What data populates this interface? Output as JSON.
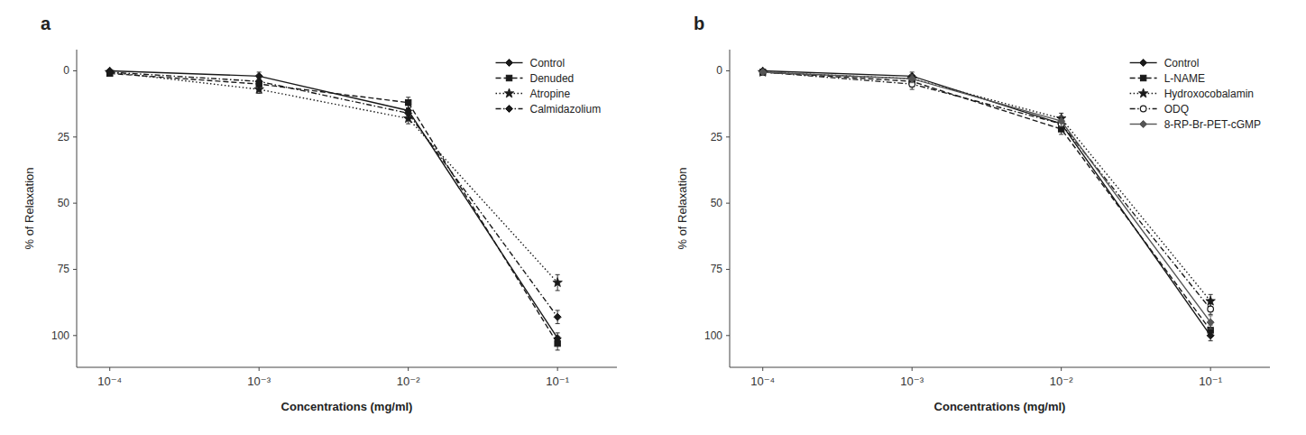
{
  "chart_data": [
    {
      "type": "line",
      "title": "a",
      "x_label": "Concentrations (mg/ml)",
      "y_label": "% of Relaxation",
      "x": [
        0.0001,
        0.001,
        0.01,
        0.1
      ],
      "log": "x",
      "grid": false,
      "legend": "upper right",
      "xlim": [
        6e-05,
        0.25
      ],
      "xticks": [
        {
          "value": 0.0001,
          "label": "10⁻⁴"
        },
        {
          "value": 0.001,
          "label": "10⁻³"
        },
        {
          "value": 0.01,
          "label": "10⁻²"
        },
        {
          "value": 0.1,
          "label": "10⁻¹"
        }
      ],
      "ylim": [
        112,
        -8
      ],
      "yticks": [
        0,
        25,
        50,
        75,
        100
      ],
      "series": [
        {
          "name": "Control",
          "values": [
            0,
            2,
            15,
            101
          ],
          "errors": [
            0.5,
            1.5,
            2,
            2
          ],
          "marker": "diamond",
          "line_style": "solid",
          "color": "#1a1a1a"
        },
        {
          "name": "Denuded",
          "values": [
            1,
            5,
            12,
            103
          ],
          "errors": [
            0.5,
            2,
            2,
            2.5
          ],
          "marker": "square",
          "line_style": "dashed",
          "color": "#1a1a1a"
        },
        {
          "name": "Atropine",
          "values": [
            0.5,
            7,
            18,
            80
          ],
          "errors": [
            0.5,
            1.5,
            2,
            3
          ],
          "marker": "star",
          "line_style": "dotted",
          "color": "#1a1a1a"
        },
        {
          "name": "Calmidazolium",
          "values": [
            0.5,
            4,
            16,
            93
          ],
          "errors": [
            0.5,
            1.5,
            2,
            2.5
          ],
          "marker": "diamond",
          "line_style": "dash-dot",
          "color": "#1a1a1a"
        }
      ]
    },
    {
      "type": "line",
      "title": "b",
      "x_label": "Concentrations (mg/ml)",
      "y_label": "% of Relaxation",
      "x": [
        0.0001,
        0.001,
        0.01,
        0.1
      ],
      "log": "x",
      "grid": false,
      "legend": "upper right",
      "xlim": [
        6e-05,
        0.25
      ],
      "xticks": [
        {
          "value": 0.0001,
          "label": "10⁻⁴"
        },
        {
          "value": 0.001,
          "label": "10⁻³"
        },
        {
          "value": 0.01,
          "label": "10⁻²"
        },
        {
          "value": 0.1,
          "label": "10⁻¹"
        }
      ],
      "ylim": [
        112,
        -8
      ],
      "yticks": [
        0,
        25,
        50,
        75,
        100
      ],
      "series": [
        {
          "name": "Control",
          "values": [
            0,
            2,
            20,
            100
          ],
          "errors": [
            0.5,
            1.5,
            2,
            2
          ],
          "marker": "diamond",
          "line_style": "solid",
          "color": "#1a1a1a"
        },
        {
          "name": "L-NAME",
          "values": [
            0.5,
            4,
            22,
            98
          ],
          "errors": [
            0.5,
            2,
            2,
            2
          ],
          "marker": "square",
          "line_style": "dashed",
          "color": "#1a1a1a"
        },
        {
          "name": "Hydroxocobalamin",
          "values": [
            0.5,
            3,
            18,
            87
          ],
          "errors": [
            0.5,
            1.5,
            2,
            2.5
          ],
          "marker": "star",
          "line_style": "dotted",
          "color": "#1a1a1a"
        },
        {
          "name": "ODQ",
          "values": [
            0.5,
            5,
            20,
            90
          ],
          "errors": [
            0.5,
            2,
            2,
            2
          ],
          "marker": "open-circle",
          "line_style": "dash-dot",
          "color": "#1a1a1a"
        },
        {
          "name": "8-RP-Br-PET-cGMP",
          "values": [
            0.5,
            3,
            19,
            95
          ],
          "errors": [
            0.5,
            1.5,
            2,
            2.5
          ],
          "marker": "diamond",
          "line_style": "solid",
          "color": "#555555"
        }
      ]
    }
  ]
}
